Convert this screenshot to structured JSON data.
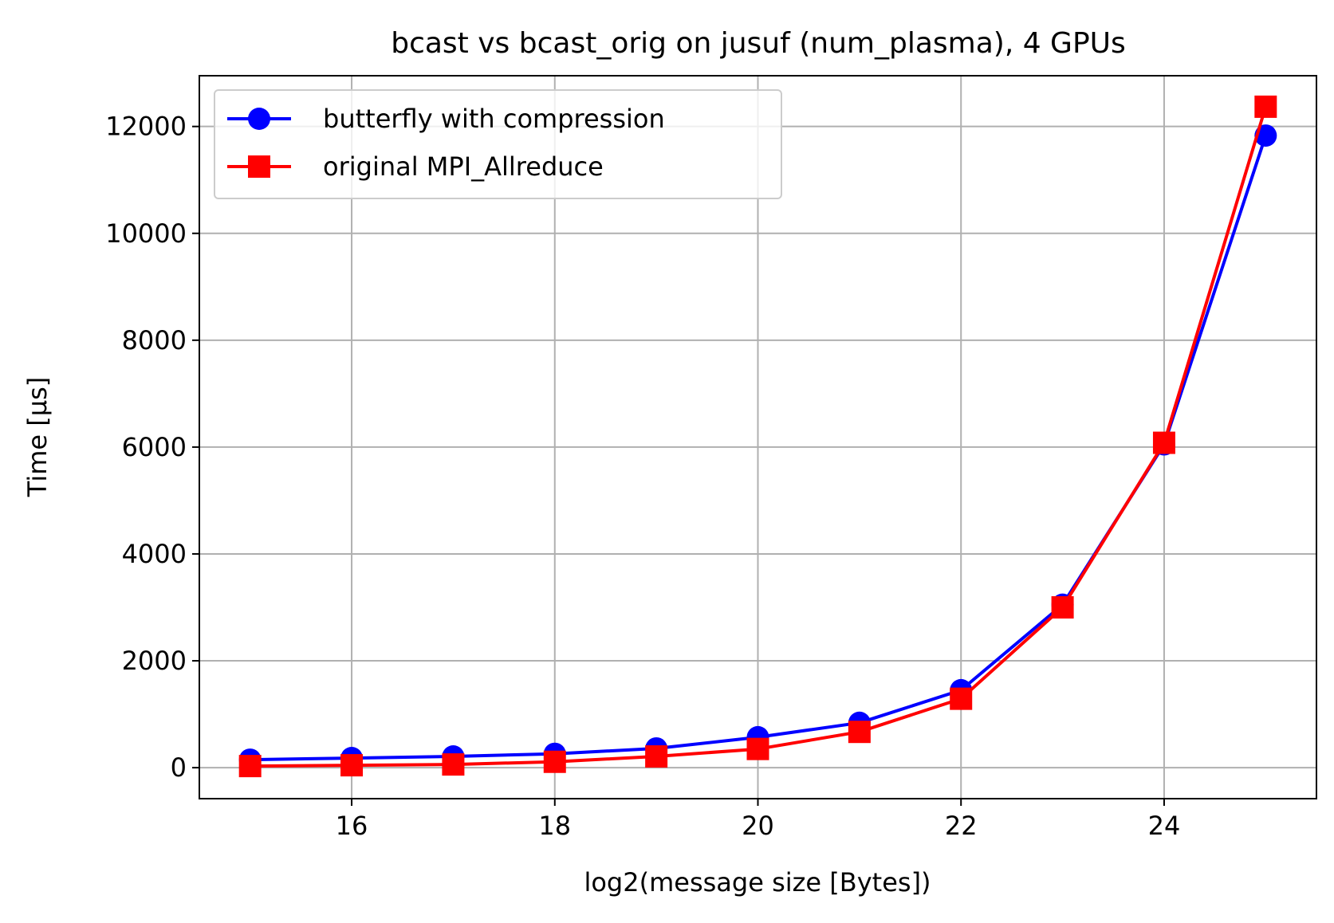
{
  "chart_data": {
    "type": "line",
    "title": "bcast vs bcast_orig on jusuf (num_plasma), 4 GPUs",
    "xlabel": "log2(message size [Bytes])",
    "ylabel": "Time [µs]",
    "xlim": [
      14.5,
      25.5
    ],
    "ylim": [
      -580,
      12950
    ],
    "x_ticks": [
      16,
      18,
      20,
      22,
      24
    ],
    "y_ticks": [
      0,
      2000,
      4000,
      6000,
      8000,
      10000,
      12000
    ],
    "grid": true,
    "legend_position": "upper-left",
    "x": [
      15,
      16,
      17,
      18,
      19,
      20,
      21,
      22,
      23,
      24,
      25
    ],
    "series": [
      {
        "name": "butterfly with compression",
        "color": "#0000ff",
        "marker": "circle",
        "values": [
          150,
          180,
          210,
          260,
          360,
          570,
          840,
          1450,
          3050,
          6050,
          11830
        ]
      },
      {
        "name": "original MPI_Allreduce",
        "color": "#ff0000",
        "marker": "square",
        "values": [
          30,
          45,
          60,
          110,
          210,
          350,
          670,
          1290,
          3000,
          6080,
          12370
        ]
      }
    ]
  }
}
